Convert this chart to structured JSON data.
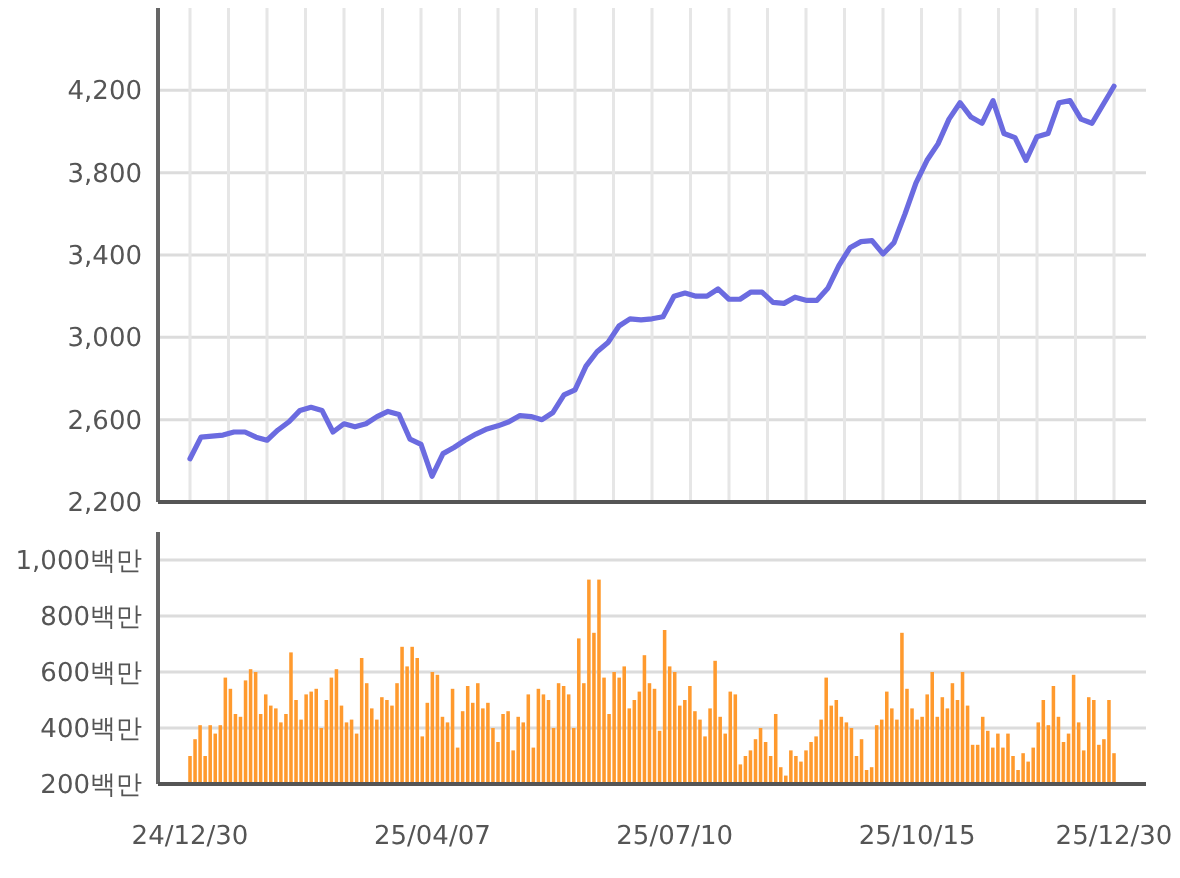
{
  "chart_data": [
    {
      "type": "line",
      "ylim": [
        2200,
        4600
      ],
      "yticks": [
        {
          "value": 2200,
          "label": "2,200"
        },
        {
          "value": 2600,
          "label": "2,600"
        },
        {
          "value": 3000,
          "label": "3,000"
        },
        {
          "value": 3400,
          "label": "3,400"
        },
        {
          "value": 3800,
          "label": "3,800"
        },
        {
          "value": 4200,
          "label": "4,200"
        }
      ],
      "grid": true,
      "tick_labels": "y",
      "marker": "none",
      "line_style": "solid",
      "categories": [
        null,
        null,
        null,
        null,
        null,
        null,
        null,
        null,
        null,
        null,
        null,
        null,
        null,
        null,
        null,
        null,
        null,
        null,
        null,
        null,
        null,
        null,
        null,
        null,
        null,
        null,
        null,
        null,
        null,
        null,
        null,
        null,
        null,
        null,
        null,
        null,
        null,
        null,
        null,
        null,
        null,
        null,
        null,
        null,
        null,
        null,
        null,
        null,
        null,
        null,
        null,
        null,
        null,
        null,
        null,
        null,
        null,
        null,
        null,
        null,
        null,
        null,
        null,
        null,
        null,
        null,
        null,
        null,
        null,
        null,
        null,
        null,
        null,
        null,
        null,
        null,
        null,
        null,
        null,
        null,
        null,
        null,
        null,
        null,
        null
      ],
      "series": [
        {
          "color": "#6b6be0",
          "values": [
            2410,
            2515,
            2520,
            2525,
            2540,
            2540,
            2515,
            2500,
            2550,
            2590,
            2645,
            2660,
            2645,
            2540,
            2580,
            2565,
            2580,
            2615,
            2640,
            2625,
            2505,
            2480,
            2325,
            2435,
            2465,
            2500,
            2530,
            2555,
            2570,
            2590,
            2620,
            2615,
            2600,
            2635,
            2720,
            2745,
            2860,
            2930,
            2975,
            3055,
            3090,
            3085,
            3090,
            3100,
            3200,
            3215,
            3200,
            3200,
            3235,
            3185,
            3185,
            3220,
            3220,
            3170,
            3165,
            3195,
            3180,
            3180,
            3240,
            3350,
            3435,
            3465,
            3470,
            3405,
            3460,
            3600,
            3750,
            3860,
            3940,
            4060,
            4140,
            4070,
            4040,
            4150,
            3990,
            3970,
            3860,
            3975,
            3990,
            4140,
            4150,
            4060,
            4040,
            4130,
            4220
          ]
        }
      ]
    },
    {
      "type": "bar",
      "ylim": [
        200,
        1100
      ],
      "yticks": [
        {
          "value": 200,
          "label": "200백만"
        },
        {
          "value": 400,
          "label": "400백만"
        },
        {
          "value": 600,
          "label": "600백만"
        },
        {
          "value": 800,
          "label": "800백만"
        },
        {
          "value": 1000,
          "label": "1,000백만"
        }
      ],
      "grid": "y",
      "categories": [
        "24/12/30",
        null,
        null,
        null,
        null,
        null,
        null,
        null,
        null,
        null,
        null,
        null,
        null,
        null,
        null,
        null,
        null,
        null,
        null,
        null,
        null,
        null,
        null,
        null,
        null,
        null,
        null,
        null,
        null,
        null,
        null,
        null,
        null,
        null,
        null,
        null,
        null,
        null,
        null,
        null,
        null,
        null,
        null,
        null,
        null,
        null,
        null,
        null,
        "25/04/07",
        null,
        null,
        null,
        null,
        null,
        null,
        null,
        null,
        null,
        null,
        null,
        null,
        null,
        null,
        null,
        null,
        null,
        null,
        null,
        null,
        null,
        null,
        null,
        null,
        null,
        null,
        null,
        null,
        null,
        null,
        null,
        null,
        null,
        null,
        null,
        null,
        null,
        null,
        null,
        null,
        null,
        null,
        null,
        null,
        null,
        null,
        null,
        "25/07/10",
        null,
        null,
        null,
        null,
        null,
        null,
        null,
        null,
        null,
        null,
        null,
        null,
        null,
        null,
        null,
        null,
        null,
        null,
        null,
        null,
        null,
        null,
        null,
        null,
        null,
        null,
        null,
        null,
        null,
        null,
        null,
        null,
        null,
        null,
        null,
        null,
        null,
        null,
        null,
        null,
        null,
        null,
        null,
        null,
        null,
        null,
        null,
        "25/10/15",
        null,
        null,
        null,
        null,
        null,
        null,
        null,
        null,
        null,
        null,
        null,
        null,
        null,
        null,
        null,
        null,
        null,
        null,
        null,
        null,
        null,
        null,
        null,
        null,
        null,
        null,
        null,
        null,
        null,
        null,
        null,
        null,
        null,
        null,
        null,
        null,
        null,
        null,
        "25/12/30"
      ],
      "series": [
        {
          "color": "#ff9a2e",
          "values": [
            300,
            360,
            410,
            300,
            410,
            380,
            410,
            580,
            540,
            450,
            440,
            570,
            610,
            600,
            450,
            520,
            480,
            470,
            420,
            450,
            670,
            500,
            430,
            520,
            530,
            540,
            400,
            500,
            580,
            610,
            480,
            420,
            430,
            380,
            650,
            560,
            470,
            430,
            510,
            500,
            480,
            560,
            690,
            620,
            690,
            650,
            370,
            490,
            600,
            590,
            440,
            420,
            540,
            330,
            460,
            550,
            490,
            560,
            470,
            490,
            400,
            350,
            450,
            460,
            320,
            440,
            420,
            520,
            330,
            540,
            520,
            500,
            400,
            560,
            550,
            520,
            400,
            720,
            560,
            930,
            740,
            930,
            580,
            450,
            600,
            580,
            620,
            470,
            500,
            530,
            660,
            560,
            540,
            390,
            750,
            620,
            600,
            480,
            500,
            550,
            460,
            430,
            370,
            470,
            640,
            440,
            380,
            530,
            520,
            270,
            300,
            320,
            360,
            400,
            350,
            300,
            450,
            260,
            230,
            320,
            300,
            280,
            320,
            350,
            370,
            430,
            580,
            480,
            500,
            440,
            420,
            400,
            300,
            360,
            250,
            260,
            410,
            430,
            530,
            470,
            430,
            740,
            540,
            470,
            430,
            440,
            520,
            600,
            440,
            510,
            470,
            560,
            500,
            600,
            480,
            340,
            340,
            440,
            390,
            330,
            380,
            330,
            380,
            300,
            250,
            310,
            280,
            330,
            420,
            500,
            410,
            550,
            440,
            350,
            380,
            590,
            420,
            320,
            510,
            500,
            340,
            360,
            500,
            310
          ]
        }
      ]
    }
  ]
}
